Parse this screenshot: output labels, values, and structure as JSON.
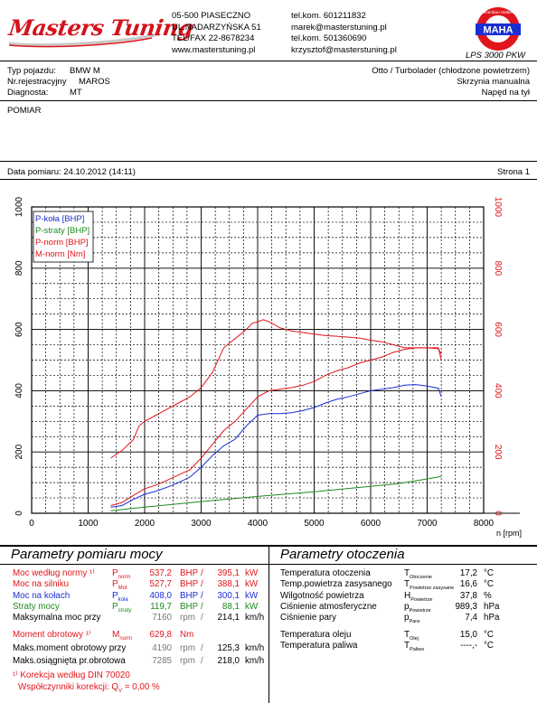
{
  "header": {
    "logo_text": "Masters Tuning",
    "address": [
      "05-500 PIASECZNO",
      "UL.NADARZYŃSKA 51",
      "TEL/FAX 22-8678234",
      "www.masterstuning.pl"
    ],
    "contacts": [
      "tel.kom. 601211832",
      "marek@masterstuning.pl",
      "tel.kom. 501360690",
      "krzysztof@masterstuning.pl"
    ],
    "badge_ring": "Maschinenbau Haldenwang",
    "badge_brand": "MAHA",
    "badge_caption": "LPS 3000 PKW"
  },
  "vehicle": {
    "type_label": "Typ pojazdu:",
    "type_value": "BMW M",
    "reg_label": "Nr.rejestracyjny",
    "reg_value": "MAROS",
    "diag_label": "Diagnosta:",
    "diag_value": "MT",
    "engine": "Otto / Turbolader (chłodzone powietrzem)",
    "gearbox": "Skrzynia manualna",
    "drive": "Napęd na tył"
  },
  "measurement": {
    "label": "POMIAR",
    "date_label": "Data pomiaru: 24.10.2012 (14:11)",
    "page_label": "Strona 1"
  },
  "chart_data": {
    "type": "line",
    "x_unit": "n [rpm]",
    "xlim": [
      0,
      8000
    ],
    "ylim": [
      0,
      1000
    ],
    "x_ticks": [
      0,
      1000,
      2000,
      3000,
      4000,
      5000,
      6000,
      7000,
      8000
    ],
    "y_ticks": [
      0,
      200,
      400,
      600,
      800,
      1000
    ],
    "grid": true,
    "legend_position": "top-left",
    "series": [
      {
        "name": "P-koła [BHP]",
        "color": "#1a2fd2",
        "x": [
          1400,
          1600,
          1800,
          2000,
          2200,
          2400,
          2600,
          2800,
          3000,
          3200,
          3400,
          3600,
          3800,
          4000,
          4200,
          4400,
          4600,
          4800,
          5000,
          5200,
          5400,
          5600,
          5800,
          6000,
          6200,
          6400,
          6600,
          6800,
          7000,
          7200,
          7250
        ],
        "y": [
          20,
          25,
          45,
          62,
          72,
          85,
          100,
          118,
          150,
          188,
          220,
          242,
          285,
          320,
          325,
          325,
          328,
          335,
          345,
          360,
          372,
          380,
          390,
          400,
          405,
          410,
          418,
          420,
          415,
          408,
          380
        ]
      },
      {
        "name": "P-straty [BHP]",
        "color": "#1f8a1f",
        "x": [
          1400,
          2000,
          3000,
          4000,
          5000,
          6000,
          6500,
          7000,
          7250
        ],
        "y": [
          8,
          20,
          38,
          55,
          70,
          88,
          97,
          112,
          120
        ]
      },
      {
        "name": "P-norm [BHP]",
        "color": "#e0161c",
        "x": [
          1400,
          1600,
          1800,
          2000,
          2200,
          2400,
          2600,
          2800,
          3000,
          3200,
          3400,
          3600,
          3800,
          4000,
          4200,
          4400,
          4600,
          4800,
          5000,
          5200,
          5400,
          5600,
          5800,
          6000,
          6200,
          6400,
          6600,
          6800,
          7000,
          7200,
          7250
        ],
        "y": [
          25,
          35,
          58,
          80,
          92,
          108,
          125,
          142,
          180,
          225,
          270,
          300,
          340,
          380,
          400,
          405,
          410,
          418,
          430,
          450,
          465,
          475,
          490,
          500,
          510,
          525,
          535,
          540,
          540,
          537,
          520
        ]
      },
      {
        "name": "M-norm [Nm]",
        "color": "#e0161c",
        "x": [
          1400,
          1600,
          1800,
          1900,
          2000,
          2200,
          2400,
          2600,
          2800,
          3000,
          3200,
          3400,
          3600,
          3800,
          3900,
          4000,
          4100,
          4200,
          4400,
          4600,
          4800,
          5000,
          5200,
          5400,
          5600,
          5800,
          6000,
          6200,
          6400,
          6600,
          6800,
          7000,
          7200,
          7250
        ],
        "y": [
          180,
          205,
          240,
          285,
          300,
          320,
          340,
          360,
          380,
          410,
          460,
          540,
          570,
          600,
          620,
          625,
          632,
          625,
          605,
          595,
          590,
          585,
          580,
          578,
          575,
          572,
          565,
          560,
          550,
          540,
          540,
          540,
          540,
          500
        ]
      }
    ]
  },
  "params_left": {
    "title": "Parametry pomiaru mocy",
    "rows": [
      {
        "label": "Moc według normy ¹⁾",
        "sym": "P",
        "sub": "norm",
        "v1": "537,2",
        "u1": "BHP",
        "sep": "/",
        "v2": "395,1",
        "u2": "kW",
        "cls": "red"
      },
      {
        "label": "Moc na silniku",
        "sym": "P",
        "sub": "Mot",
        "v1": "527,7",
        "u1": "BHP",
        "sep": "/",
        "v2": "388,1",
        "u2": "kW",
        "cls": "red"
      },
      {
        "label": "Moc na kołach",
        "sym": "P",
        "sub": "koła",
        "v1": "408,0",
        "u1": "BHP",
        "sep": "/",
        "v2": "300,1",
        "u2": "kW",
        "cls": "blue"
      },
      {
        "label": "Straty mocy",
        "sym": "P",
        "sub": "straty",
        "v1": "119,7",
        "u1": "BHP",
        "sep": "/",
        "v2": "88,1",
        "u2": "kW",
        "cls": "green"
      },
      {
        "label": "Maksymalna moc przy",
        "sym": "",
        "sub": "",
        "v1": "7160",
        "u1": "rpm",
        "sep": "/",
        "v2": "214,1",
        "u2": "km/h",
        "cls": "black"
      }
    ],
    "torque_rows": [
      {
        "label": "Moment obrotowy ¹⁾",
        "sym": "M",
        "sub": "norm",
        "v1": "629,8",
        "u1": "Nm",
        "sep": "",
        "v2": "",
        "u2": "",
        "cls": "red"
      },
      {
        "label": "Maks.moment obrotowy przy",
        "sym": "",
        "sub": "",
        "v1": "4190",
        "u1": "rpm",
        "sep": "/",
        "v2": "125,3",
        "u2": "km/h",
        "cls": "black"
      },
      {
        "label": "Maks.osiągnięta pr.obrotowa",
        "sym": "",
        "sub": "",
        "v1": "7285",
        "u1": "rpm",
        "sep": "/",
        "v2": "218,0",
        "u2": "km/h",
        "cls": "black"
      }
    ],
    "note1": "¹⁾ Korekcja według DIN 70020",
    "note2": "Współczynniki korekcji: Q",
    "note2_sub": "V",
    "note2_val": "=   0,00 %"
  },
  "params_right": {
    "title": "Parametry otoczenia",
    "rows": [
      {
        "label": "Temperatura otoczenia",
        "sym": "T",
        "sub": "Otoczenie",
        "val": "17,2",
        "unit": "°C"
      },
      {
        "label": "Temp.powietrza zasysanego",
        "sym": "T",
        "sub": "Powietrze zasysane",
        "val": "16,6",
        "unit": "°C"
      },
      {
        "label": "Wilgotność powietrza",
        "sym": "H",
        "sub": "Powietrze",
        "val": "37,8",
        "unit": "%"
      },
      {
        "label": "Ciśnienie atmosferyczne",
        "sym": "p",
        "sub": "Powietrze",
        "val": "989,3",
        "unit": "hPa"
      },
      {
        "label": "Ciśnienie pary",
        "sym": "p",
        "sub": "Para",
        "val": "7,4",
        "unit": "hPa"
      }
    ],
    "rows2": [
      {
        "label": "Temperatura oleju",
        "sym": "T",
        "sub": "Olej",
        "val": "15,0",
        "unit": "°C"
      },
      {
        "label": "Temperatura paliwa",
        "sym": "T",
        "sub": "Paliwo",
        "val": "----,-",
        "unit": "°C"
      }
    ]
  }
}
